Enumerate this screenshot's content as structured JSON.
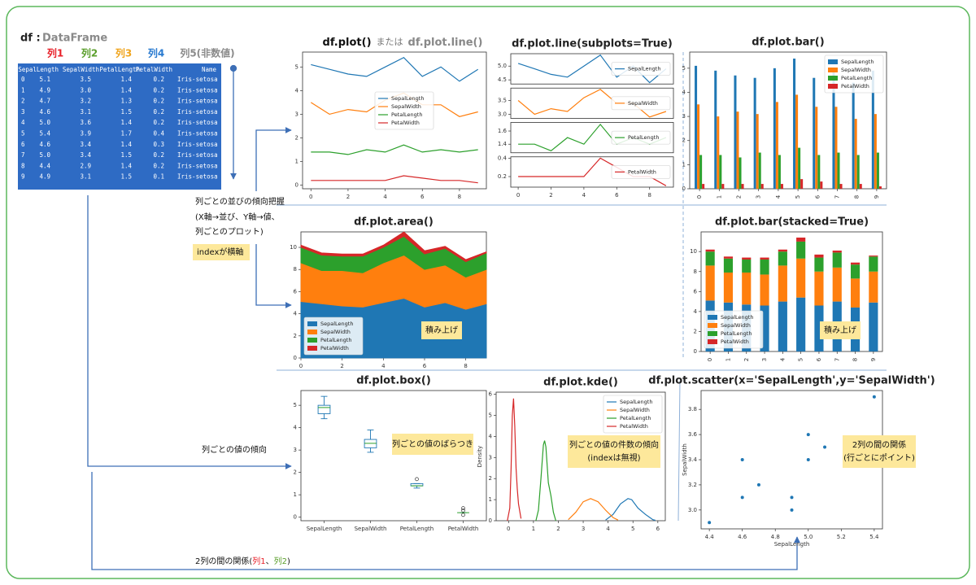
{
  "header": {
    "df": "df :",
    "type": "DataFrame"
  },
  "column_labels": [
    {
      "text": "列1",
      "color": "#e8212a"
    },
    {
      "text": "列2",
      "color": "#5b9f2c"
    },
    {
      "text": "列3",
      "color": "#f0a51e"
    },
    {
      "text": "列4",
      "color": "#2a7bd0"
    },
    {
      "text": "列5(非数値)",
      "color": "#8a8a8a"
    }
  ],
  "table": {
    "columns": [
      "SepalLength",
      "SepalWidth",
      "PetalLength",
      "PetalWidth",
      "Name"
    ],
    "index": [
      "0",
      "1",
      "2",
      "3",
      "4",
      "5",
      "6",
      "7",
      "8",
      "9"
    ],
    "rows": [
      [
        "5.1",
        "3.5",
        "1.4",
        "0.2",
        "Iris-setosa"
      ],
      [
        "4.9",
        "3.0",
        "1.4",
        "0.2",
        "Iris-setosa"
      ],
      [
        "4.7",
        "3.2",
        "1.3",
        "0.2",
        "Iris-setosa"
      ],
      [
        "4.6",
        "3.1",
        "1.5",
        "0.2",
        "Iris-setosa"
      ],
      [
        "5.0",
        "3.6",
        "1.4",
        "0.2",
        "Iris-setosa"
      ],
      [
        "5.4",
        "3.9",
        "1.7",
        "0.4",
        "Iris-setosa"
      ],
      [
        "4.6",
        "3.4",
        "1.4",
        "0.3",
        "Iris-setosa"
      ],
      [
        "5.0",
        "3.4",
        "1.5",
        "0.2",
        "Iris-setosa"
      ],
      [
        "4.4",
        "2.9",
        "1.4",
        "0.2",
        "Iris-setosa"
      ],
      [
        "4.9",
        "3.1",
        "1.5",
        "0.1",
        "Iris-setosa"
      ]
    ]
  },
  "notes": {
    "trend": [
      "列ごとの並びの傾向把握",
      "(X軸→並び、Y軸→値、",
      "列ごとのプロット)"
    ],
    "index_axis": "indexが横軸",
    "value_trend": "列ごとの値の傾向",
    "relation": [
      {
        "text": "2列の間の関係(",
        "color": "#111111"
      },
      {
        "text": "列1",
        "color": "#e8212a"
      },
      {
        "text": "、",
        "color": "#111111"
      },
      {
        "text": "列2",
        "color": "#5b9f2c"
      },
      {
        "text": ")",
        "color": "#111111"
      }
    ]
  },
  "chart_data": [
    {
      "type": "line",
      "title": [
        "df.plot()",
        "または",
        "df.plot.line()"
      ],
      "x": [
        0,
        1,
        2,
        3,
        4,
        5,
        6,
        7,
        8,
        9
      ],
      "xlim": [
        -0.45,
        9.45
      ],
      "xticks": [
        0,
        2,
        4,
        6,
        8
      ],
      "ylim": [
        -0.15,
        5.63
      ],
      "yticks": [
        0,
        1,
        2,
        3,
        4,
        5
      ],
      "legend": "center",
      "series": [
        {
          "name": "SepalLength",
          "color": "#1f77b4",
          "values": [
            5.1,
            4.9,
            4.7,
            4.6,
            5.0,
            5.4,
            4.6,
            5.0,
            4.4,
            4.9
          ]
        },
        {
          "name": "SepalWidth",
          "color": "#ff7f0e",
          "values": [
            3.5,
            3.0,
            3.2,
            3.1,
            3.6,
            3.9,
            3.4,
            3.4,
            2.9,
            3.1
          ]
        },
        {
          "name": "PetalLength",
          "color": "#2ca02c",
          "values": [
            1.4,
            1.4,
            1.3,
            1.5,
            1.4,
            1.7,
            1.4,
            1.5,
            1.4,
            1.5
          ]
        },
        {
          "name": "PetalWidth",
          "color": "#d62728",
          "values": [
            0.2,
            0.2,
            0.2,
            0.2,
            0.2,
            0.4,
            0.3,
            0.2,
            0.2,
            0.1
          ]
        }
      ]
    },
    {
      "type": "line",
      "subplots": true,
      "title": "df.plot.line(subplots=True)",
      "x": [
        0,
        1,
        2,
        3,
        4,
        5,
        6,
        7,
        8,
        9
      ],
      "xlim": [
        -0.45,
        9.45
      ],
      "xticks": [
        0,
        2,
        4,
        6,
        8
      ],
      "legend": "right",
      "series": [
        {
          "name": "SepalLength",
          "color": "#1f77b4",
          "values": [
            5.1,
            4.9,
            4.7,
            4.6,
            5.0,
            5.4,
            4.6,
            5.0,
            4.4,
            4.9
          ],
          "ylim": [
            4.35,
            5.45
          ],
          "yticks": [
            4.5,
            {
              "value": 5,
              "label": "5.0"
            }
          ]
        },
        {
          "name": "SepalWidth",
          "color": "#ff7f0e",
          "values": [
            3.5,
            3.0,
            3.2,
            3.1,
            3.6,
            3.9,
            3.4,
            3.4,
            2.9,
            3.1
          ],
          "ylim": [
            2.85,
            3.95
          ],
          "yticks": [
            {
              "value": 3,
              "label": "3.0"
            },
            3.5
          ]
        },
        {
          "name": "PetalLength",
          "color": "#2ca02c",
          "values": [
            1.4,
            1.4,
            1.3,
            1.5,
            1.4,
            1.7,
            1.4,
            1.5,
            1.4,
            1.5
          ],
          "ylim": [
            1.27,
            1.73
          ],
          "yticks": [
            1.4,
            1.6
          ]
        },
        {
          "name": "PetalWidth",
          "color": "#d62728",
          "values": [
            0.2,
            0.2,
            0.2,
            0.2,
            0.2,
            0.4,
            0.3,
            0.2,
            0.2,
            0.1
          ],
          "ylim": [
            0.085,
            0.415
          ],
          "yticks": [
            0.2,
            0.4
          ]
        }
      ]
    },
    {
      "type": "bar",
      "title": "df.plot.bar()",
      "categories": [
        "0",
        "1",
        "2",
        "3",
        "4",
        "5",
        "6",
        "7",
        "8",
        "9"
      ],
      "ylim": [
        0,
        5.67
      ],
      "yticks": [
        0,
        1,
        2,
        3,
        4,
        5
      ],
      "legend": "upper right",
      "series": [
        {
          "name": "SepalLength",
          "color": "#1f77b4",
          "values": [
            5.1,
            4.9,
            4.7,
            4.6,
            5.0,
            5.4,
            4.6,
            5.0,
            4.4,
            4.9
          ]
        },
        {
          "name": "SepalWidth",
          "color": "#ff7f0e",
          "values": [
            3.5,
            3.0,
            3.2,
            3.1,
            3.6,
            3.9,
            3.4,
            3.4,
            2.9,
            3.1
          ]
        },
        {
          "name": "PetalLength",
          "color": "#2ca02c",
          "values": [
            1.4,
            1.4,
            1.3,
            1.5,
            1.4,
            1.7,
            1.4,
            1.5,
            1.4,
            1.5
          ]
        },
        {
          "name": "PetalWidth",
          "color": "#d62728",
          "values": [
            0.2,
            0.2,
            0.2,
            0.2,
            0.2,
            0.4,
            0.3,
            0.2,
            0.2,
            0.1
          ]
        }
      ]
    },
    {
      "type": "area",
      "title": "df.plot.area()",
      "x": [
        0,
        1,
        2,
        3,
        4,
        5,
        6,
        7,
        8,
        9
      ],
      "xlim": [
        0,
        9
      ],
      "xticks": [
        0,
        2,
        4,
        6,
        8
      ],
      "ylim": [
        0,
        11.4
      ],
      "yticks": [
        0,
        2,
        4,
        6,
        8,
        10
      ],
      "legend": "lower left",
      "annotation": [
        "積み上げ"
      ],
      "series": [
        {
          "name": "SepalLength",
          "color": "#1f77b4",
          "values": [
            5.1,
            4.9,
            4.7,
            4.6,
            5.0,
            5.4,
            4.6,
            5.0,
            4.4,
            4.9
          ]
        },
        {
          "name": "SepalWidth",
          "color": "#ff7f0e",
          "values": [
            3.5,
            3.0,
            3.2,
            3.1,
            3.6,
            3.9,
            3.4,
            3.4,
            2.9,
            3.1
          ]
        },
        {
          "name": "PetalLength",
          "color": "#2ca02c",
          "values": [
            1.4,
            1.4,
            1.3,
            1.5,
            1.4,
            1.7,
            1.4,
            1.5,
            1.4,
            1.5
          ]
        },
        {
          "name": "PetalWidth",
          "color": "#d62728",
          "values": [
            0.2,
            0.2,
            0.2,
            0.2,
            0.2,
            0.4,
            0.3,
            0.2,
            0.2,
            0.1
          ]
        }
      ]
    },
    {
      "type": "bar",
      "stacked": true,
      "title": "df.plot.bar(stacked=True)",
      "categories": [
        "0",
        "1",
        "2",
        "3",
        "4",
        "5",
        "6",
        "7",
        "8",
        "9"
      ],
      "ylim": [
        0,
        11.97
      ],
      "yticks": [
        0,
        2,
        4,
        6,
        8,
        10
      ],
      "legend": "lower left",
      "annotation": [
        "積み上げ"
      ],
      "series": [
        {
          "name": "SepalLength",
          "color": "#1f77b4",
          "values": [
            5.1,
            4.9,
            4.7,
            4.6,
            5.0,
            5.4,
            4.6,
            5.0,
            4.4,
            4.9
          ]
        },
        {
          "name": "SepalWidth",
          "color": "#ff7f0e",
          "values": [
            3.5,
            3.0,
            3.2,
            3.1,
            3.6,
            3.9,
            3.4,
            3.4,
            2.9,
            3.1
          ]
        },
        {
          "name": "PetalLength",
          "color": "#2ca02c",
          "values": [
            1.4,
            1.4,
            1.3,
            1.5,
            1.4,
            1.7,
            1.4,
            1.5,
            1.4,
            1.5
          ]
        },
        {
          "name": "PetalWidth",
          "color": "#d62728",
          "values": [
            0.2,
            0.2,
            0.2,
            0.2,
            0.2,
            0.4,
            0.3,
            0.2,
            0.2,
            0.1
          ]
        }
      ]
    },
    {
      "type": "box",
      "title": "df.plot.box()",
      "categories": [
        "SepalLength",
        "SepalWidth",
        "PetalLength",
        "PetalWidth"
      ],
      "ylim": [
        -0.16,
        5.66
      ],
      "yticks": [
        0,
        1,
        2,
        3,
        4,
        5
      ],
      "color": "#1f77b4",
      "median_color": "#2ca02c",
      "annotation": [
        "列ごとの値のばらつき"
      ],
      "boxes": [
        {
          "whislo": 4.4,
          "q1": 4.625,
          "med": 4.9,
          "q3": 5.0,
          "whishi": 5.4,
          "fliers": []
        },
        {
          "whislo": 2.9,
          "q1": 3.1,
          "med": 3.3,
          "q3": 3.475,
          "whishi": 3.9,
          "fliers": []
        },
        {
          "whislo": 1.3,
          "q1": 1.4,
          "med": 1.4,
          "q3": 1.5,
          "whishi": 1.5,
          "fliers": [
            1.7
          ]
        },
        {
          "whislo": 0.2,
          "q1": 0.2,
          "med": 0.2,
          "q3": 0.2,
          "whishi": 0.2,
          "fliers": [
            0.1,
            0.3,
            0.4
          ]
        }
      ]
    },
    {
      "type": "line",
      "title": "df.plot.kde()",
      "ylabel": "Density",
      "xlim": [
        -0.5,
        6.3
      ],
      "xticks": [
        0,
        1,
        2,
        3,
        4,
        5,
        6
      ],
      "ylim": [
        0,
        6.1
      ],
      "yticks": [
        0,
        1,
        2,
        3,
        4,
        5,
        6
      ],
      "legend": "upper right",
      "annotation": [
        "列ごとの値の件数の傾向",
        "(indexは無視)"
      ],
      "series": [
        {
          "name": "SepalLength",
          "color": "#1f77b4",
          "x": [
            3.9,
            4.2,
            4.5,
            4.8,
            4.95,
            5.2,
            5.5,
            5.8,
            5.9
          ],
          "values": [
            0.03,
            0.3,
            0.8,
            1.05,
            1.0,
            0.6,
            0.3,
            0.05,
            0.02
          ]
        },
        {
          "name": "SepalWidth",
          "color": "#ff7f0e",
          "x": [
            2.4,
            2.7,
            3.0,
            3.3,
            3.6,
            3.9,
            4.2,
            4.4
          ],
          "values": [
            0.05,
            0.4,
            0.9,
            1.05,
            0.9,
            0.5,
            0.15,
            0.03
          ]
        },
        {
          "name": "PetalLength",
          "color": "#2ca02c",
          "x": [
            1.1,
            1.2,
            1.3,
            1.4,
            1.45,
            1.5,
            1.6,
            1.7,
            1.8,
            1.9
          ],
          "values": [
            0,
            0.5,
            2.0,
            3.6,
            3.8,
            3.5,
            1.8,
            1.2,
            0.4,
            0
          ]
        },
        {
          "name": "PetalWidth",
          "color": "#d62728",
          "x": [
            -0.05,
            0.05,
            0.1,
            0.15,
            0.2,
            0.25,
            0.3,
            0.35,
            0.4,
            0.5
          ],
          "values": [
            0,
            0.6,
            2.5,
            5.0,
            5.8,
            4.5,
            2.5,
            1.5,
            0.8,
            0.1
          ]
        }
      ]
    },
    {
      "type": "scatter",
      "title": "df.plot.scatter(x='SepalLength',y='SepalWidth')",
      "xlabel": "SepalLength",
      "ylabel": "SepalWidth",
      "color": "#1f77b4",
      "x": [
        5.1,
        4.9,
        4.7,
        4.6,
        5.0,
        5.4,
        4.6,
        5.0,
        4.4,
        4.9
      ],
      "values": [
        3.5,
        3.0,
        3.2,
        3.1,
        3.6,
        3.9,
        3.4,
        3.4,
        2.9,
        3.1
      ],
      "xlim": [
        4.35,
        5.45
      ],
      "xticks": [
        4.4,
        4.6,
        4.8,
        {
          "value": 5,
          "label": "5.0"
        },
        5.2,
        5.4
      ],
      "ylim": [
        2.85,
        3.95
      ],
      "yticks": [
        {
          "value": 3,
          "label": "3.0"
        },
        3.2,
        3.4,
        3.6,
        3.8
      ],
      "annotation": [
        "2列の間の関係",
        "(行ごとにポイント)"
      ]
    }
  ]
}
